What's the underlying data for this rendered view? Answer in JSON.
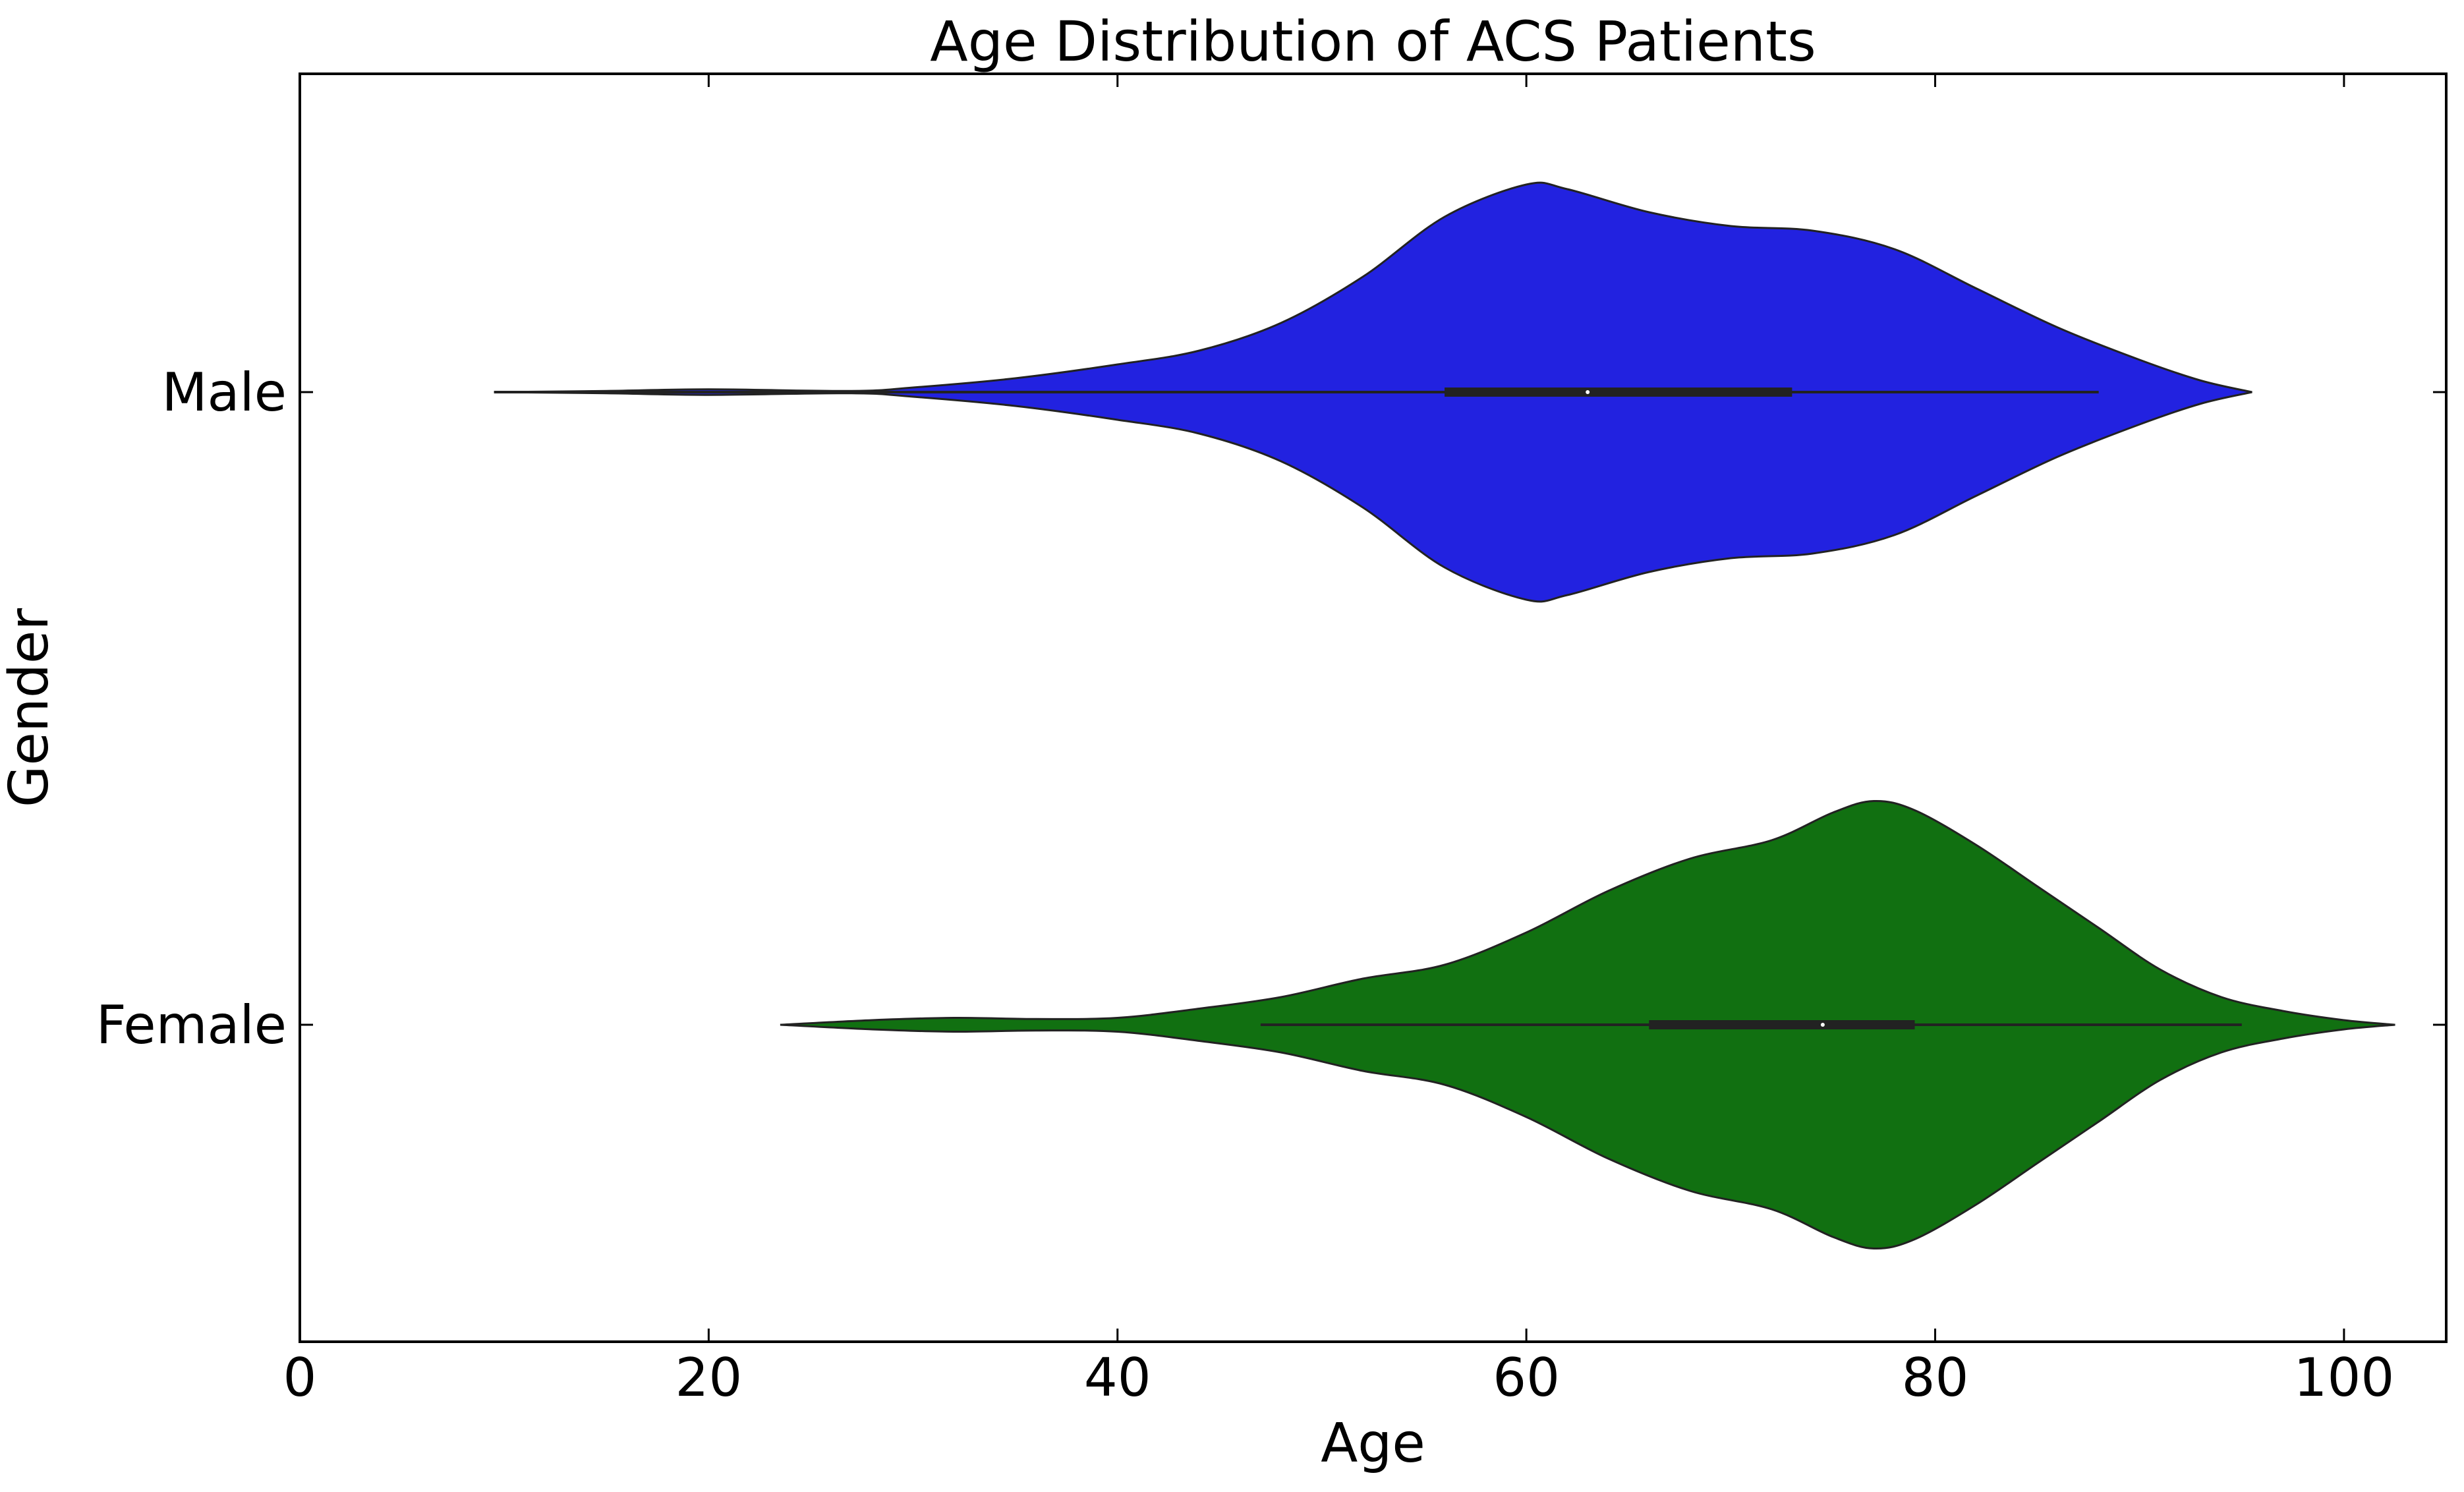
{
  "chart_data": {
    "type": "violin",
    "title": "Age Distribution of ACS Patients",
    "xlabel": "Age",
    "ylabel": "Gender",
    "xlim": [
      0,
      105
    ],
    "xticks": [
      0,
      20,
      40,
      60,
      80,
      100
    ],
    "grid": false,
    "colors": {
      "Male": "#2222e0",
      "Female": "#117011"
    },
    "categories": [
      "Male",
      "Female"
    ],
    "series": [
      {
        "name": "Male",
        "min": 9.5,
        "max": 95.5,
        "whisker_low": 9.5,
        "whisker_high": 88,
        "q1": 56,
        "median": 63,
        "q3": 73,
        "density": [
          [
            9.5,
            0.0
          ],
          [
            15,
            0.005
          ],
          [
            20,
            0.012
          ],
          [
            27,
            0.005
          ],
          [
            30,
            0.02
          ],
          [
            35,
            0.06
          ],
          [
            40,
            0.12
          ],
          [
            44,
            0.18
          ],
          [
            48,
            0.3
          ],
          [
            52,
            0.5
          ],
          [
            56,
            0.76
          ],
          [
            60,
            0.9
          ],
          [
            62,
            0.88
          ],
          [
            66,
            0.78
          ],
          [
            70,
            0.72
          ],
          [
            74,
            0.7
          ],
          [
            78,
            0.62
          ],
          [
            82,
            0.45
          ],
          [
            86,
            0.28
          ],
          [
            90,
            0.14
          ],
          [
            93,
            0.05
          ],
          [
            95.5,
            0.0
          ]
        ]
      },
      {
        "name": "Female",
        "min": 23.5,
        "max": 102.5,
        "whisker_low": 47,
        "whisker_high": 95,
        "q1": 66,
        "median": 74.5,
        "q3": 79,
        "density": [
          [
            23.5,
            0.0
          ],
          [
            28,
            0.02
          ],
          [
            32,
            0.03
          ],
          [
            36,
            0.025
          ],
          [
            40,
            0.03
          ],
          [
            44,
            0.07
          ],
          [
            48,
            0.12
          ],
          [
            52,
            0.2
          ],
          [
            56,
            0.26
          ],
          [
            60,
            0.4
          ],
          [
            64,
            0.58
          ],
          [
            68,
            0.72
          ],
          [
            72,
            0.8
          ],
          [
            75,
            0.92
          ],
          [
            77,
            0.97
          ],
          [
            79,
            0.93
          ],
          [
            82,
            0.78
          ],
          [
            85,
            0.6
          ],
          [
            88,
            0.42
          ],
          [
            91,
            0.24
          ],
          [
            94,
            0.12
          ],
          [
            97,
            0.06
          ],
          [
            100,
            0.02
          ],
          [
            102.5,
            0.0
          ]
        ]
      }
    ]
  }
}
